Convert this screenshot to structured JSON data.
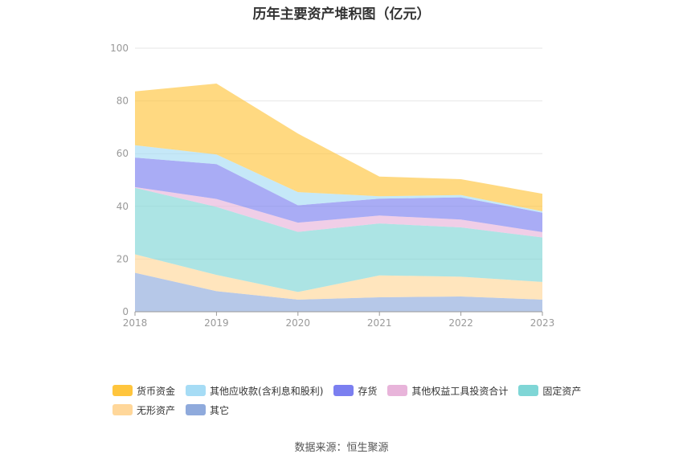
{
  "title": "历年主要资产堆积图（亿元）",
  "source": "数据来源：恒生聚源",
  "chart_data": {
    "type": "area",
    "stacked": true,
    "title": "历年主要资产堆积图（亿元）",
    "x": [
      "2018",
      "2019",
      "2020",
      "2021",
      "2022",
      "2023"
    ],
    "ylim": [
      0,
      100
    ],
    "yticks": [
      0,
      20,
      40,
      60,
      80,
      100
    ],
    "grid": true,
    "legend_position": "bottom",
    "series": [
      {
        "name": "其它",
        "color": "#8faadc",
        "values": [
          14.8,
          7.8,
          4.6,
          5.5,
          5.8,
          4.6
        ]
      },
      {
        "name": "无形资产",
        "color": "#ffd79a",
        "values": [
          7.0,
          6.2,
          2.9,
          8.3,
          7.5,
          6.7
        ]
      },
      {
        "name": "固定资产",
        "color": "#7fd6d6",
        "values": [
          25.2,
          25.8,
          22.8,
          19.7,
          18.7,
          16.9
        ]
      },
      {
        "name": "其他权益工具投资合计",
        "color": "#e8b4da",
        "values": [
          0.3,
          3.0,
          3.5,
          3.0,
          3.0,
          2.0
        ]
      },
      {
        "name": "存货",
        "color": "#7b7ff0",
        "values": [
          11.2,
          13.2,
          6.6,
          6.4,
          8.4,
          7.4
        ]
      },
      {
        "name": "其他应收款(含利息和股利)",
        "color": "#a6dcf5",
        "values": [
          4.7,
          3.7,
          5.0,
          0.9,
          0.9,
          0.5
        ]
      },
      {
        "name": "货币资金",
        "color": "#ffc53d",
        "values": [
          20.4,
          26.9,
          22.2,
          7.5,
          6.0,
          6.7
        ]
      }
    ]
  },
  "legend": {
    "row1": [
      {
        "name": "货币资金",
        "color": "#ffc53d"
      },
      {
        "name": "其他应收款(含利息和股利)",
        "color": "#a6dcf5"
      },
      {
        "name": "存货",
        "color": "#7b7ff0"
      },
      {
        "name": "其他权益工具投资合计",
        "color": "#e8b4da"
      },
      {
        "name": "固定资产",
        "color": "#7fd6d6"
      }
    ],
    "row2": [
      {
        "name": "无形资产",
        "color": "#ffd79a"
      },
      {
        "name": "其它",
        "color": "#8faadc"
      }
    ]
  }
}
